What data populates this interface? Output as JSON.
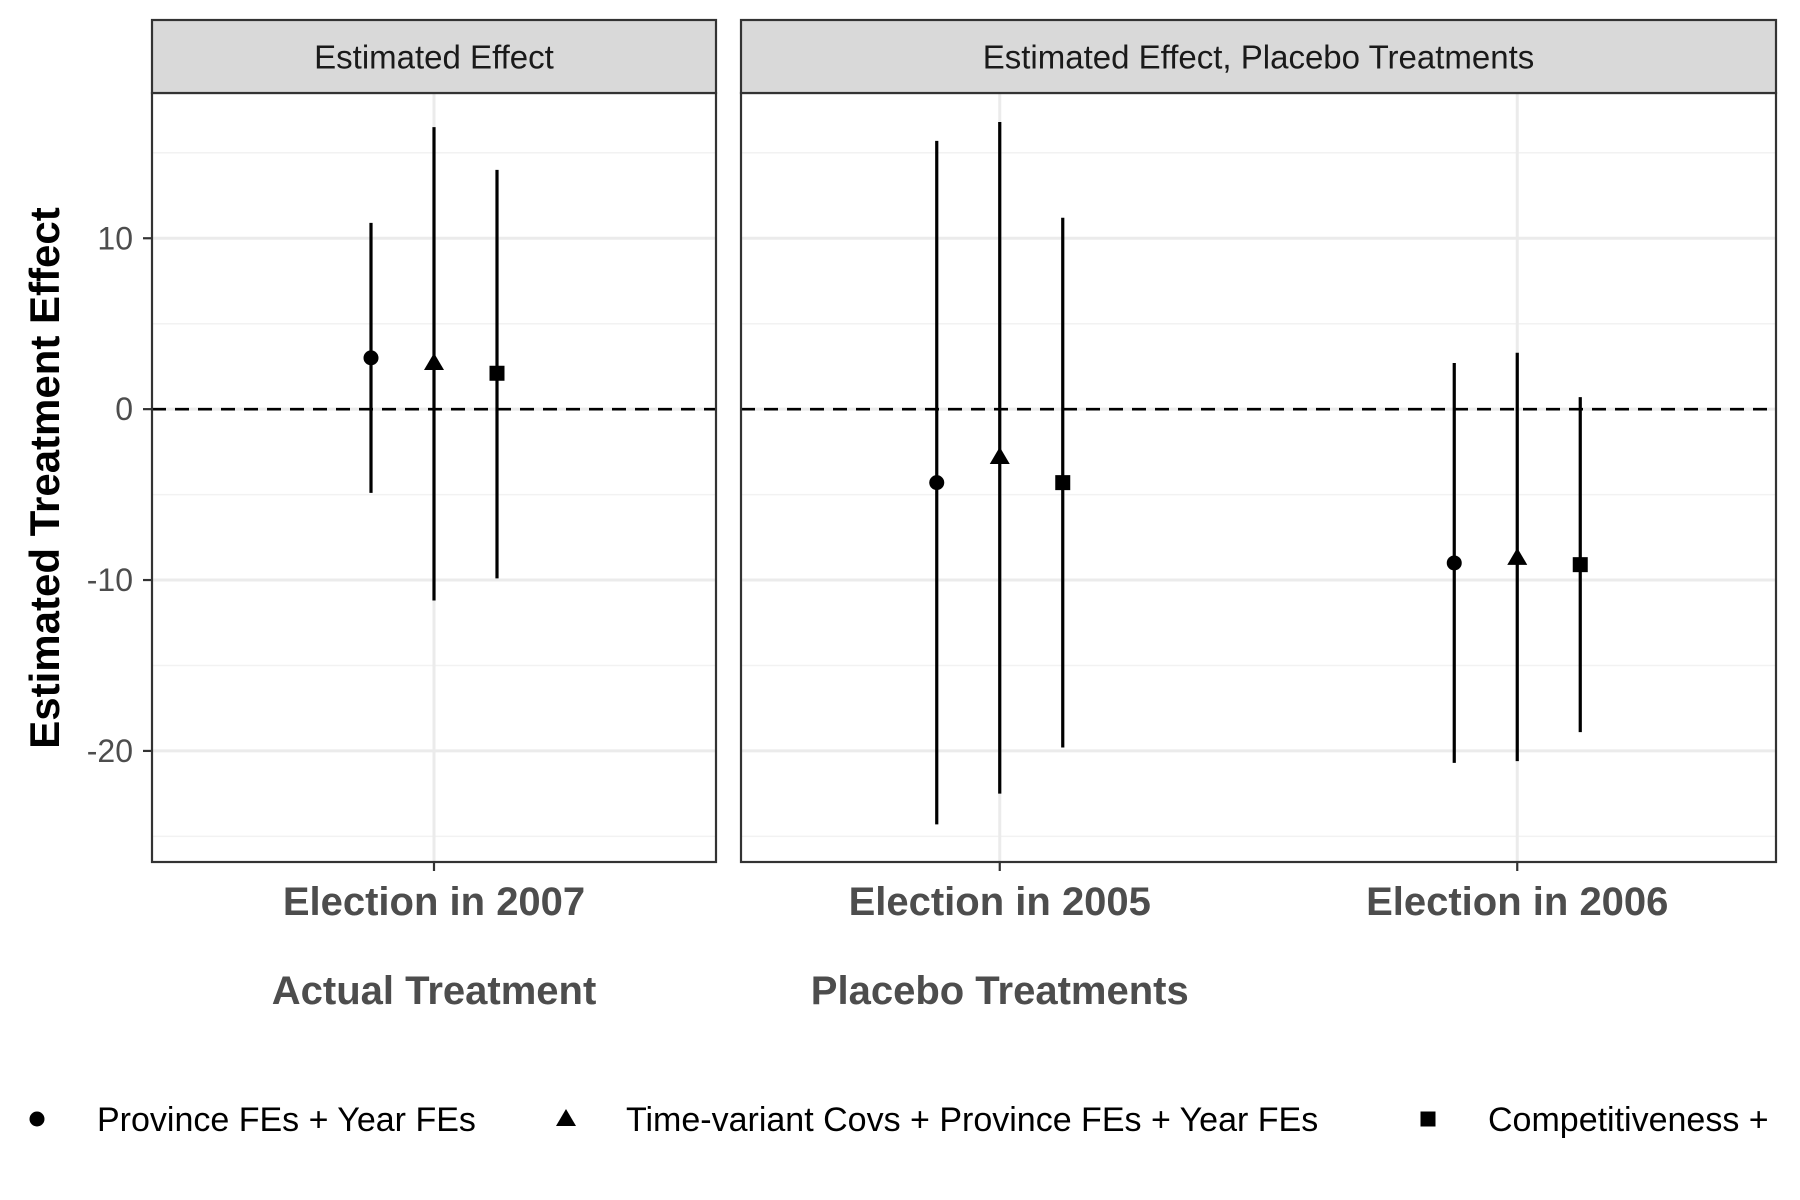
{
  "chart_data": {
    "type": "scatter",
    "ylabel": "Estimated Treatment Effect",
    "ylim": [
      -26.5,
      18.5
    ],
    "yticks": [
      10,
      0,
      -10,
      -20
    ],
    "ytick_labels": [
      "10",
      "0",
      "-10",
      "-20"
    ],
    "reference_line": {
      "y": 0,
      "style": "dashed"
    },
    "grid": true,
    "legend_position": "bottom",
    "series": [
      {
        "name": "Province FEs + Year FEs",
        "marker": "circle"
      },
      {
        "name": "Time-variant Covs + Province FEs + Year FEs",
        "marker": "triangle"
      },
      {
        "name": "Competitiveness + ",
        "marker": "square"
      }
    ],
    "panels": [
      {
        "strip": "Estimated Effect",
        "xlabel": "Actual Treatment",
        "categories": [
          "Election in 2007"
        ],
        "points": [
          {
            "category": "Election in 2007",
            "series": 0,
            "estimate": 3.0,
            "lower": -4.9,
            "upper": 10.9
          },
          {
            "category": "Election in 2007",
            "series": 1,
            "estimate": 2.7,
            "lower": -11.2,
            "upper": 16.5
          },
          {
            "category": "Election in 2007",
            "series": 2,
            "estimate": 2.1,
            "lower": -9.9,
            "upper": 14.0
          }
        ]
      },
      {
        "strip": "Estimated Effect, Placebo Treatments",
        "xlabel": "Placebo Treatments",
        "categories": [
          "Election in 2005",
          "Election in 2006"
        ],
        "points": [
          {
            "category": "Election in 2005",
            "series": 0,
            "estimate": -4.3,
            "lower": -24.3,
            "upper": 15.7
          },
          {
            "category": "Election in 2005",
            "series": 1,
            "estimate": -2.8,
            "lower": -22.5,
            "upper": 16.8
          },
          {
            "category": "Election in 2005",
            "series": 2,
            "estimate": -4.3,
            "lower": -19.8,
            "upper": 11.2
          },
          {
            "category": "Election in 2006",
            "series": 0,
            "estimate": -9.0,
            "lower": -20.7,
            "upper": 2.7
          },
          {
            "category": "Election in 2006",
            "series": 1,
            "estimate": -8.7,
            "lower": -20.6,
            "upper": 3.3
          },
          {
            "category": "Election in 2006",
            "series": 2,
            "estimate": -9.1,
            "lower": -18.9,
            "upper": 0.7
          }
        ]
      }
    ]
  },
  "colors": {
    "strip_fill": "#d9d9d9",
    "panel_border": "#333333",
    "grid_major": "#ebebeb",
    "grid_minor": "#f2f2f2",
    "marks": "#000000"
  }
}
